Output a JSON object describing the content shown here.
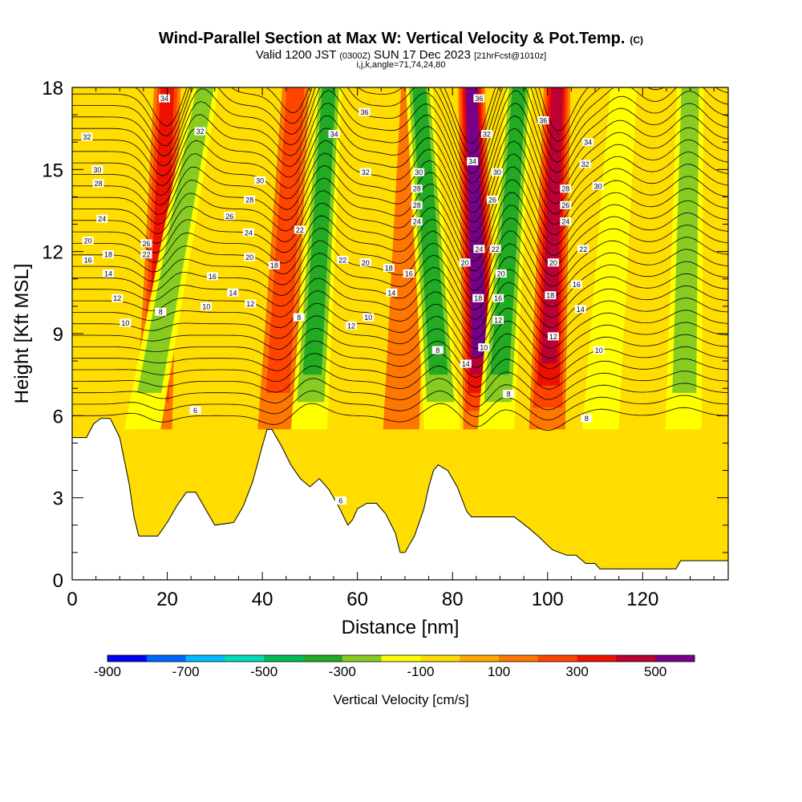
{
  "header": {
    "title": "Wind-Parallel Section at Max W: Vertical Velocity & Pot.Temp.",
    "copyright": "(C)",
    "valid_main": "Valid 1200 JST",
    "valid_utc": "(0300Z)",
    "valid_date": "SUN 17 Dec 2023",
    "valid_fcst": "[21hrFcst@1010z]",
    "indices": "i,j,k,angle=71,74,24,80"
  },
  "chart_data": {
    "type": "heatmap",
    "xlabel": "Distance [nm]",
    "ylabel": "Height [Kft MSL]",
    "xlim": [
      0,
      138
    ],
    "ylim": [
      0,
      18
    ],
    "x_ticks": [
      0,
      20,
      40,
      60,
      80,
      100,
      120
    ],
    "y_ticks": [
      0,
      3,
      6,
      9,
      12,
      15,
      18
    ],
    "colorbar": {
      "title": "Vertical Velocity [cm/s]",
      "tick_labels": [
        "-900",
        "-700",
        "-500",
        "-300",
        "-100",
        "100",
        "300",
        "500"
      ],
      "colors": [
        "#0000ff",
        "#0066ff",
        "#00bbff",
        "#00ddbb",
        "#00bb55",
        "#22aa22",
        "#88cc22",
        "#ffff00",
        "#ffdd00",
        "#ffaa00",
        "#ff7700",
        "#ff4400",
        "#ee1100",
        "#bb0033",
        "#770088"
      ]
    },
    "velocity_bands": [
      {
        "x_base": 16,
        "x_top": 20,
        "sign": "up",
        "peak": 400
      },
      {
        "x_base": 9,
        "x_top": 28,
        "sign": "down",
        "peak": -300
      },
      {
        "x_base": 41,
        "x_top": 47,
        "sign": "up",
        "peak": 300
      },
      {
        "x_base": 48,
        "x_top": 54,
        "sign": "down",
        "peak": -400
      },
      {
        "x_base": 68,
        "x_top": 72,
        "sign": "up",
        "peak": 200
      },
      {
        "x_base": 80,
        "x_top": 73,
        "sign": "down",
        "peak": -400
      },
      {
        "x_base": 87,
        "x_top": 84,
        "sign": "up",
        "peak": 600
      },
      {
        "x_base": 87,
        "x_top": 94,
        "sign": "down",
        "peak": -400
      },
      {
        "x_base": 99,
        "x_top": 102,
        "sign": "up",
        "peak": 450
      },
      {
        "x_base": 109,
        "x_top": 116,
        "sign": "down",
        "peak": -200
      },
      {
        "x_base": 128,
        "x_top": 130,
        "sign": "down",
        "peak": -250
      }
    ],
    "terrain": [
      {
        "x": 0,
        "h": 5.2
      },
      {
        "x": 3,
        "h": 5.2
      },
      {
        "x": 4.5,
        "h": 5.7
      },
      {
        "x": 6,
        "h": 5.9
      },
      {
        "x": 8,
        "h": 5.9
      },
      {
        "x": 10,
        "h": 5.2
      },
      {
        "x": 12,
        "h": 3.5
      },
      {
        "x": 13,
        "h": 2.3
      },
      {
        "x": 14,
        "h": 1.6
      },
      {
        "x": 18,
        "h": 1.6
      },
      {
        "x": 20,
        "h": 2.1
      },
      {
        "x": 22,
        "h": 2.7
      },
      {
        "x": 24,
        "h": 3.2
      },
      {
        "x": 26,
        "h": 3.2
      },
      {
        "x": 28,
        "h": 2.6
      },
      {
        "x": 30,
        "h": 2.0
      },
      {
        "x": 34,
        "h": 2.1
      },
      {
        "x": 36,
        "h": 2.7
      },
      {
        "x": 38,
        "h": 3.6
      },
      {
        "x": 40,
        "h": 4.9
      },
      {
        "x": 41,
        "h": 5.5
      },
      {
        "x": 42,
        "h": 5.5
      },
      {
        "x": 44,
        "h": 4.9
      },
      {
        "x": 46,
        "h": 4.2
      },
      {
        "x": 48,
        "h": 3.7
      },
      {
        "x": 50,
        "h": 3.4
      },
      {
        "x": 52,
        "h": 3.7
      },
      {
        "x": 54,
        "h": 3.3
      },
      {
        "x": 56,
        "h": 2.7
      },
      {
        "x": 58,
        "h": 2.0
      },
      {
        "x": 59,
        "h": 2.2
      },
      {
        "x": 60,
        "h": 2.6
      },
      {
        "x": 62,
        "h": 2.8
      },
      {
        "x": 64,
        "h": 2.8
      },
      {
        "x": 66,
        "h": 2.4
      },
      {
        "x": 68,
        "h": 1.7
      },
      {
        "x": 69,
        "h": 1.0
      },
      {
        "x": 70,
        "h": 1.0
      },
      {
        "x": 72,
        "h": 1.6
      },
      {
        "x": 74,
        "h": 2.6
      },
      {
        "x": 75,
        "h": 3.4
      },
      {
        "x": 76,
        "h": 4.0
      },
      {
        "x": 77,
        "h": 4.2
      },
      {
        "x": 79,
        "h": 4.0
      },
      {
        "x": 81,
        "h": 3.4
      },
      {
        "x": 83,
        "h": 2.5
      },
      {
        "x": 84,
        "h": 2.3
      },
      {
        "x": 93,
        "h": 2.3
      },
      {
        "x": 96,
        "h": 1.9
      },
      {
        "x": 98,
        "h": 1.6
      },
      {
        "x": 101,
        "h": 1.1
      },
      {
        "x": 104,
        "h": 0.9
      },
      {
        "x": 106,
        "h": 0.9
      },
      {
        "x": 108,
        "h": 0.6
      },
      {
        "x": 110,
        "h": 0.6
      },
      {
        "x": 111,
        "h": 0.4
      },
      {
        "x": 127,
        "h": 0.4
      },
      {
        "x": 128,
        "h": 0.7
      },
      {
        "x": 138,
        "h": 0.7
      }
    ],
    "contour_labels": [
      {
        "x": 19.4,
        "y": 17.6,
        "text": "34"
      },
      {
        "x": 3.1,
        "y": 16.2,
        "text": "32"
      },
      {
        "x": 5.3,
        "y": 15.0,
        "text": "30"
      },
      {
        "x": 5.5,
        "y": 14.5,
        "text": "28"
      },
      {
        "x": 6.3,
        "y": 13.2,
        "text": "24"
      },
      {
        "x": 3.3,
        "y": 12.4,
        "text": "20"
      },
      {
        "x": 3.3,
        "y": 11.7,
        "text": "16"
      },
      {
        "x": 7.6,
        "y": 11.9,
        "text": "18"
      },
      {
        "x": 7.6,
        "y": 11.2,
        "text": "14"
      },
      {
        "x": 9.5,
        "y": 10.3,
        "text": "12"
      },
      {
        "x": 11.2,
        "y": 9.4,
        "text": "10"
      },
      {
        "x": 15.6,
        "y": 12.3,
        "text": "26"
      },
      {
        "x": 15.6,
        "y": 11.9,
        "text": "22"
      },
      {
        "x": 18.6,
        "y": 9.8,
        "text": "8"
      },
      {
        "x": 26.9,
        "y": 16.4,
        "text": "32"
      },
      {
        "x": 39.5,
        "y": 14.6,
        "text": "30"
      },
      {
        "x": 37.3,
        "y": 13.9,
        "text": "28"
      },
      {
        "x": 33.1,
        "y": 13.3,
        "text": "26"
      },
      {
        "x": 37.1,
        "y": 12.7,
        "text": "24"
      },
      {
        "x": 37.3,
        "y": 11.8,
        "text": "20"
      },
      {
        "x": 42.5,
        "y": 11.5,
        "text": "18"
      },
      {
        "x": 29.5,
        "y": 11.1,
        "text": "16"
      },
      {
        "x": 33.8,
        "y": 10.5,
        "text": "14"
      },
      {
        "x": 37.5,
        "y": 10.1,
        "text": "12"
      },
      {
        "x": 28.2,
        "y": 10.0,
        "text": "10"
      },
      {
        "x": 47.9,
        "y": 12.8,
        "text": "22"
      },
      {
        "x": 47.7,
        "y": 9.6,
        "text": "8"
      },
      {
        "x": 25.9,
        "y": 6.2,
        "text": "6"
      },
      {
        "x": 55.1,
        "y": 16.3,
        "text": "34"
      },
      {
        "x": 61.5,
        "y": 17.1,
        "text": "36"
      },
      {
        "x": 61.7,
        "y": 14.9,
        "text": "32"
      },
      {
        "x": 72.9,
        "y": 14.9,
        "text": "30"
      },
      {
        "x": 72.5,
        "y": 14.3,
        "text": "28"
      },
      {
        "x": 72.5,
        "y": 13.7,
        "text": "28"
      },
      {
        "x": 72.5,
        "y": 13.1,
        "text": "24"
      },
      {
        "x": 56.9,
        "y": 11.7,
        "text": "22"
      },
      {
        "x": 61.7,
        "y": 11.6,
        "text": "20"
      },
      {
        "x": 66.6,
        "y": 11.4,
        "text": "18"
      },
      {
        "x": 70.8,
        "y": 11.2,
        "text": "16"
      },
      {
        "x": 67.2,
        "y": 10.5,
        "text": "14"
      },
      {
        "x": 58.7,
        "y": 9.3,
        "text": "12"
      },
      {
        "x": 62.3,
        "y": 9.6,
        "text": "10"
      },
      {
        "x": 76.9,
        "y": 8.4,
        "text": "8"
      },
      {
        "x": 56.5,
        "y": 2.9,
        "text": "6"
      },
      {
        "x": 85.6,
        "y": 17.6,
        "text": "36"
      },
      {
        "x": 87.2,
        "y": 16.3,
        "text": "32"
      },
      {
        "x": 84.2,
        "y": 15.3,
        "text": "34"
      },
      {
        "x": 89.4,
        "y": 14.9,
        "text": "30"
      },
      {
        "x": 88.4,
        "y": 13.9,
        "text": "26"
      },
      {
        "x": 85.6,
        "y": 12.1,
        "text": "24"
      },
      {
        "x": 89.0,
        "y": 12.1,
        "text": "22"
      },
      {
        "x": 82.6,
        "y": 11.6,
        "text": "20"
      },
      {
        "x": 90.2,
        "y": 11.2,
        "text": "20"
      },
      {
        "x": 85.4,
        "y": 10.3,
        "text": "18"
      },
      {
        "x": 89.6,
        "y": 10.3,
        "text": "16"
      },
      {
        "x": 89.6,
        "y": 9.5,
        "text": "12"
      },
      {
        "x": 86.6,
        "y": 8.5,
        "text": "10"
      },
      {
        "x": 82.8,
        "y": 7.9,
        "text": "14"
      },
      {
        "x": 91.8,
        "y": 6.8,
        "text": "8"
      },
      {
        "x": 99.1,
        "y": 16.8,
        "text": "36"
      },
      {
        "x": 108.5,
        "y": 16.0,
        "text": "34"
      },
      {
        "x": 107.9,
        "y": 15.2,
        "text": "32"
      },
      {
        "x": 110.6,
        "y": 14.4,
        "text": "30"
      },
      {
        "x": 103.8,
        "y": 14.3,
        "text": "28"
      },
      {
        "x": 103.8,
        "y": 13.7,
        "text": "26"
      },
      {
        "x": 103.8,
        "y": 13.1,
        "text": "24"
      },
      {
        "x": 107.5,
        "y": 12.1,
        "text": "22"
      },
      {
        "x": 101.2,
        "y": 11.6,
        "text": "20"
      },
      {
        "x": 106.1,
        "y": 10.8,
        "text": "16"
      },
      {
        "x": 100.6,
        "y": 10.4,
        "text": "18"
      },
      {
        "x": 106.9,
        "y": 9.9,
        "text": "14"
      },
      {
        "x": 101.2,
        "y": 8.9,
        "text": "12"
      },
      {
        "x": 110.8,
        "y": 8.4,
        "text": "10"
      },
      {
        "x": 108.2,
        "y": 5.9,
        "text": "8"
      }
    ]
  }
}
